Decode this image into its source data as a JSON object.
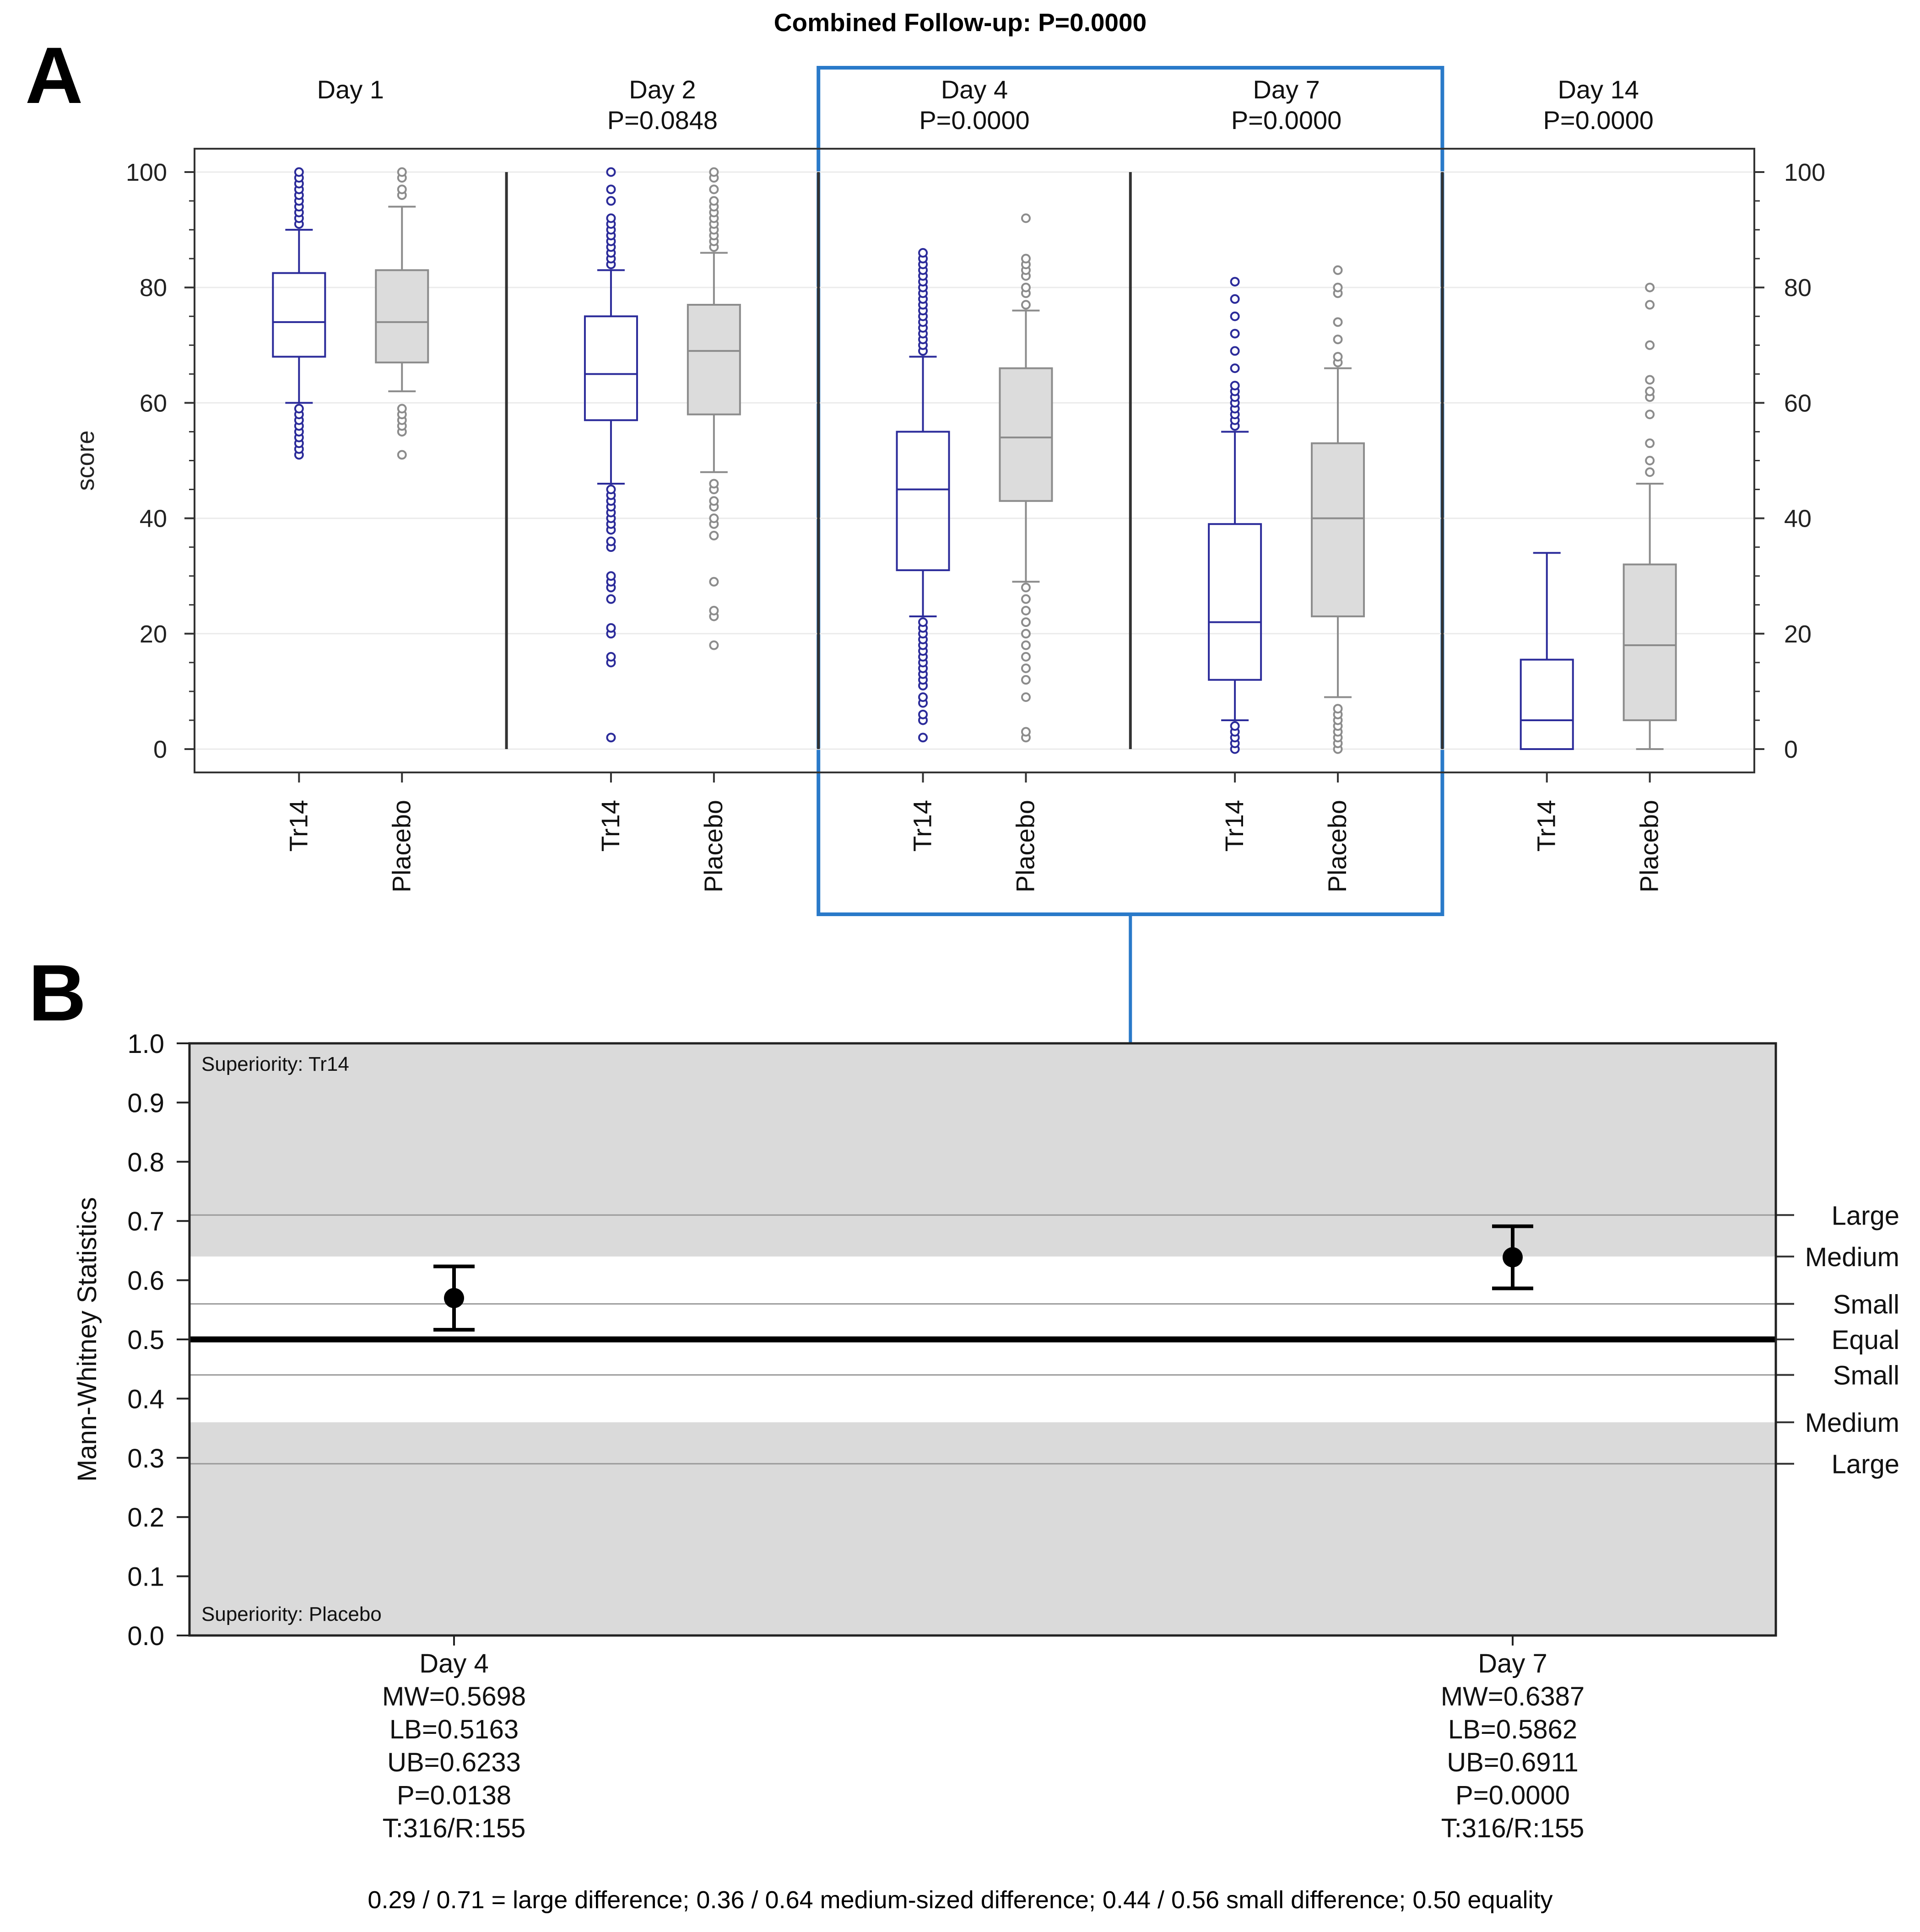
{
  "figure": {
    "panel_a_letter": "A",
    "panel_b_letter": "B",
    "footnote": "0.29 / 0.71 = large difference; 0.36 / 0.64 medium-sized difference; 0.44 / 0.56 small difference; 0.50 equality"
  },
  "colors": {
    "tr14": "#2b2b9a",
    "placebo": "#8c8c8c",
    "placebo_fill": "#dcdcdc",
    "highlight": "#2a7ac9",
    "band": "#dadada"
  },
  "chart_data": [
    {
      "type": "box",
      "title": "Combined Follow-up: P=0.0000",
      "xlabel": "",
      "ylabel": "score",
      "ylim": [
        0,
        100
      ],
      "yticks": [
        0,
        20,
        40,
        60,
        80,
        100
      ],
      "groups": [
        {
          "day": "Day 1",
          "p": "",
          "highlighted": false,
          "boxes": [
            {
              "label": "Tr14",
              "series": "Tr14",
              "q1": 68,
              "median": 74,
              "q3": 82.5,
              "whisker_low": 60,
              "whisker_high": 90,
              "outliers": [
                51,
                52,
                53,
                54,
                55,
                56,
                57,
                58,
                59,
                91,
                92,
                93,
                94,
                95,
                96,
                97,
                98,
                99,
                100
              ]
            },
            {
              "label": "Placebo",
              "series": "Placebo",
              "q1": 67,
              "median": 74,
              "q3": 83,
              "whisker_low": 62,
              "whisker_high": 94,
              "outliers": [
                51,
                55,
                56,
                57,
                58,
                59,
                96,
                97,
                99,
                100
              ]
            }
          ]
        },
        {
          "day": "Day 2",
          "p": "P=0.0848",
          "highlighted": false,
          "boxes": [
            {
              "label": "Tr14",
              "series": "Tr14",
              "q1": 57,
              "median": 65,
              "q3": 75,
              "whisker_low": 46,
              "whisker_high": 83,
              "outliers": [
                2,
                15,
                16,
                20,
                21,
                26,
                28,
                29,
                30,
                35,
                36,
                38,
                39,
                40,
                41,
                42,
                43,
                44,
                45,
                84,
                85,
                86,
                87,
                88,
                89,
                90,
                91,
                92,
                95,
                97,
                100
              ]
            },
            {
              "label": "Placebo",
              "series": "Placebo",
              "q1": 58,
              "median": 69,
              "q3": 77,
              "whisker_low": 48,
              "whisker_high": 86,
              "outliers": [
                18,
                23,
                24,
                29,
                37,
                39,
                40,
                42,
                43,
                45,
                46,
                87,
                88,
                89,
                90,
                91,
                92,
                93,
                94,
                95,
                97,
                99,
                100
              ]
            }
          ]
        },
        {
          "day": "Day 4",
          "p": "P=0.0000",
          "highlighted": true,
          "boxes": [
            {
              "label": "Tr14",
              "series": "Tr14",
              "q1": 31,
              "median": 45,
              "q3": 55,
              "whisker_low": 23,
              "whisker_high": 68,
              "outliers": [
                2,
                5,
                6,
                8,
                9,
                11,
                12,
                13,
                14,
                15,
                16,
                17,
                18,
                19,
                20,
                21,
                22,
                69,
                70,
                71,
                72,
                73,
                74,
                75,
                76,
                77,
                78,
                79,
                80,
                81,
                82,
                83,
                84,
                85,
                86
              ]
            },
            {
              "label": "Placebo",
              "series": "Placebo",
              "q1": 43,
              "median": 54,
              "q3": 66,
              "whisker_low": 29,
              "whisker_high": 76,
              "outliers": [
                2,
                3,
                9,
                12,
                14,
                16,
                18,
                20,
                22,
                24,
                26,
                28,
                77,
                79,
                80,
                82,
                83,
                84,
                85,
                92
              ]
            }
          ]
        },
        {
          "day": "Day 7",
          "p": "P=0.0000",
          "highlighted": true,
          "boxes": [
            {
              "label": "Tr14",
              "series": "Tr14",
              "q1": 12,
              "median": 22,
              "q3": 39,
              "whisker_low": 5,
              "whisker_high": 55,
              "outliers": [
                0,
                1,
                2,
                3,
                4,
                56,
                57,
                58,
                59,
                60,
                61,
                62,
                63,
                66,
                69,
                72,
                75,
                78,
                81
              ]
            },
            {
              "label": "Placebo",
              "series": "Placebo",
              "q1": 23,
              "median": 40,
              "q3": 53,
              "whisker_low": 9,
              "whisker_high": 66,
              "outliers": [
                0,
                1,
                2,
                3,
                4,
                5,
                6,
                7,
                67,
                68,
                71,
                74,
                79,
                80,
                83
              ]
            }
          ]
        },
        {
          "day": "Day 14",
          "p": "P=0.0000",
          "highlighted": false,
          "boxes": [
            {
              "label": "Tr14",
              "series": "Tr14",
              "q1": 0,
              "median": 5,
              "q3": 15.5,
              "whisker_low": 0,
              "whisker_high": 34,
              "outliers": []
            },
            {
              "label": "Placebo",
              "series": "Placebo",
              "q1": 5,
              "median": 18,
              "q3": 32,
              "whisker_low": 0,
              "whisker_high": 46,
              "outliers": [
                48,
                50,
                53,
                58,
                61,
                62,
                64,
                70,
                77,
                80
              ]
            }
          ]
        }
      ]
    },
    {
      "type": "errorbar",
      "title": "",
      "xlabel": "",
      "ylabel": "Mann-Whitney Statistics",
      "ylim": [
        0.0,
        1.0
      ],
      "yticks": [
        "0.0",
        "0.1",
        "0.2",
        "0.3",
        "0.4",
        "0.5",
        "0.6",
        "0.7",
        "0.8",
        "0.9",
        "1.0"
      ],
      "superiority_top": "Superiority: Tr14",
      "superiority_bottom": "Superiority: Placebo",
      "thresholds": [
        {
          "value": 0.71,
          "label": "Large"
        },
        {
          "value": 0.64,
          "label": "Medium"
        },
        {
          "value": 0.56,
          "label": "Small"
        },
        {
          "value": 0.5,
          "label": "Equal"
        },
        {
          "value": 0.44,
          "label": "Small"
        },
        {
          "value": 0.36,
          "label": "Medium"
        },
        {
          "value": 0.29,
          "label": "Large"
        }
      ],
      "points": [
        {
          "day": "Day 4",
          "mw": 0.5698,
          "lb": 0.5163,
          "ub": 0.6233,
          "lines": [
            "Day 4",
            "MW=0.5698",
            "LB=0.5163",
            "UB=0.6233",
            "P=0.0138",
            "T:316/R:155"
          ]
        },
        {
          "day": "Day 7",
          "mw": 0.6387,
          "lb": 0.5862,
          "ub": 0.6911,
          "lines": [
            "Day 7",
            "MW=0.6387",
            "LB=0.5862",
            "UB=0.6911",
            "P=0.0000",
            "T:316/R:155"
          ]
        }
      ]
    }
  ]
}
